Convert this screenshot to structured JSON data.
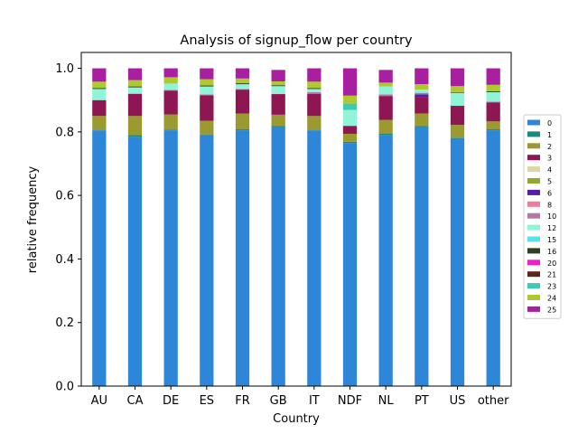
{
  "chart_data": {
    "type": "bar",
    "stacked": true,
    "title": "Analysis of signup_flow per country",
    "xlabel": "Country",
    "ylabel": "relative frequency",
    "ylim": [
      0,
      1.05
    ],
    "yticks": [
      "0.0",
      "0.2",
      "0.4",
      "0.6",
      "0.8",
      "1.0"
    ],
    "grid": false,
    "legend_position": "right",
    "categories": [
      "AU",
      "CA",
      "DE",
      "ES",
      "FR",
      "GB",
      "IT",
      "NDF",
      "NL",
      "PT",
      "US",
      "other"
    ],
    "series": [
      {
        "name": "0",
        "color": "#2e86d9",
        "values": [
          0.805,
          0.785,
          0.805,
          0.79,
          0.805,
          0.815,
          0.805,
          0.765,
          0.79,
          0.815,
          0.78,
          0.805
        ]
      },
      {
        "name": "1",
        "color": "#1a8a7a",
        "values": [
          0.0,
          0.005,
          0.002,
          0.002,
          0.003,
          0.004,
          0.0,
          0.004,
          0.005,
          0.003,
          0.002,
          0.003
        ]
      },
      {
        "name": "2",
        "color": "#9a9a30",
        "values": [
          0.045,
          0.06,
          0.048,
          0.043,
          0.05,
          0.035,
          0.045,
          0.025,
          0.043,
          0.04,
          0.04,
          0.025
        ]
      },
      {
        "name": "3",
        "color": "#8e1652",
        "values": [
          0.05,
          0.07,
          0.075,
          0.08,
          0.075,
          0.065,
          0.07,
          0.025,
          0.075,
          0.05,
          0.06,
          0.06
        ]
      },
      {
        "name": "4",
        "color": "#d8d8a0",
        "values": [
          0.0,
          0.0,
          0.0,
          0.0,
          0.0,
          0.0,
          0.0,
          0.0,
          0.0,
          0.0,
          0.0,
          0.0
        ]
      },
      {
        "name": "5",
        "color": "#93a832",
        "values": [
          0.0,
          0.0,
          0.0,
          0.0,
          0.0,
          0.0,
          0.0,
          0.0,
          0.0,
          0.0,
          0.0,
          0.0
        ]
      },
      {
        "name": "6",
        "color": "#5020a8",
        "values": [
          0.0,
          0.0,
          0.0,
          0.0,
          0.0,
          0.0,
          0.0,
          0.0,
          0.0,
          0.01,
          0.0,
          0.0
        ]
      },
      {
        "name": "8",
        "color": "#f07aa0",
        "values": [
          0.0,
          0.0,
          0.0,
          0.0,
          0.0,
          0.0,
          0.0,
          0.0,
          0.0,
          0.0,
          0.0,
          0.0
        ]
      },
      {
        "name": "10",
        "color": "#b07aa8",
        "values": [
          0.0,
          0.0,
          0.002,
          0.003,
          0.002,
          0.0,
          0.005,
          0.0,
          0.005,
          0.005,
          0.0,
          0.002
        ]
      },
      {
        "name": "12",
        "color": "#90f5d8",
        "values": [
          0.035,
          0.02,
          0.02,
          0.025,
          0.015,
          0.025,
          0.01,
          0.05,
          0.025,
          0.01,
          0.04,
          0.03
        ]
      },
      {
        "name": "15",
        "color": "#5ce0ea",
        "values": [
          0.0,
          0.0,
          0.0,
          0.0,
          0.0,
          0.0,
          0.0,
          0.0,
          0.0,
          0.0,
          0.0,
          0.0
        ]
      },
      {
        "name": "16",
        "color": "#2e4020",
        "values": [
          0.003,
          0.003,
          0.0,
          0.003,
          0.003,
          0.003,
          0.003,
          0.0,
          0.0,
          0.0,
          0.002,
          0.003
        ]
      },
      {
        "name": "20",
        "color": "#f020c8",
        "values": [
          0.0,
          0.0,
          0.0,
          0.0,
          0.0,
          0.0,
          0.0,
          0.0,
          0.0,
          0.0,
          0.0,
          0.0
        ]
      },
      {
        "name": "21",
        "color": "#5a2818",
        "values": [
          0.0,
          0.0,
          0.0,
          0.0,
          0.0,
          0.0,
          0.0,
          0.0,
          0.0,
          0.0,
          0.0,
          0.0
        ]
      },
      {
        "name": "23",
        "color": "#3ccab0",
        "values": [
          0.0,
          0.0,
          0.0,
          0.0,
          0.0,
          0.0,
          0.0,
          0.02,
          0.0,
          0.0,
          0.0,
          0.0
        ]
      },
      {
        "name": "24",
        "color": "#b0c830",
        "values": [
          0.02,
          0.02,
          0.02,
          0.02,
          0.015,
          0.012,
          0.02,
          0.025,
          0.012,
          0.017,
          0.02,
          0.02
        ]
      },
      {
        "name": "25",
        "color": "#a820a0",
        "values": [
          0.042,
          0.037,
          0.028,
          0.034,
          0.032,
          0.036,
          0.042,
          0.086,
          0.04,
          0.05,
          0.056,
          0.052
        ]
      }
    ]
  }
}
